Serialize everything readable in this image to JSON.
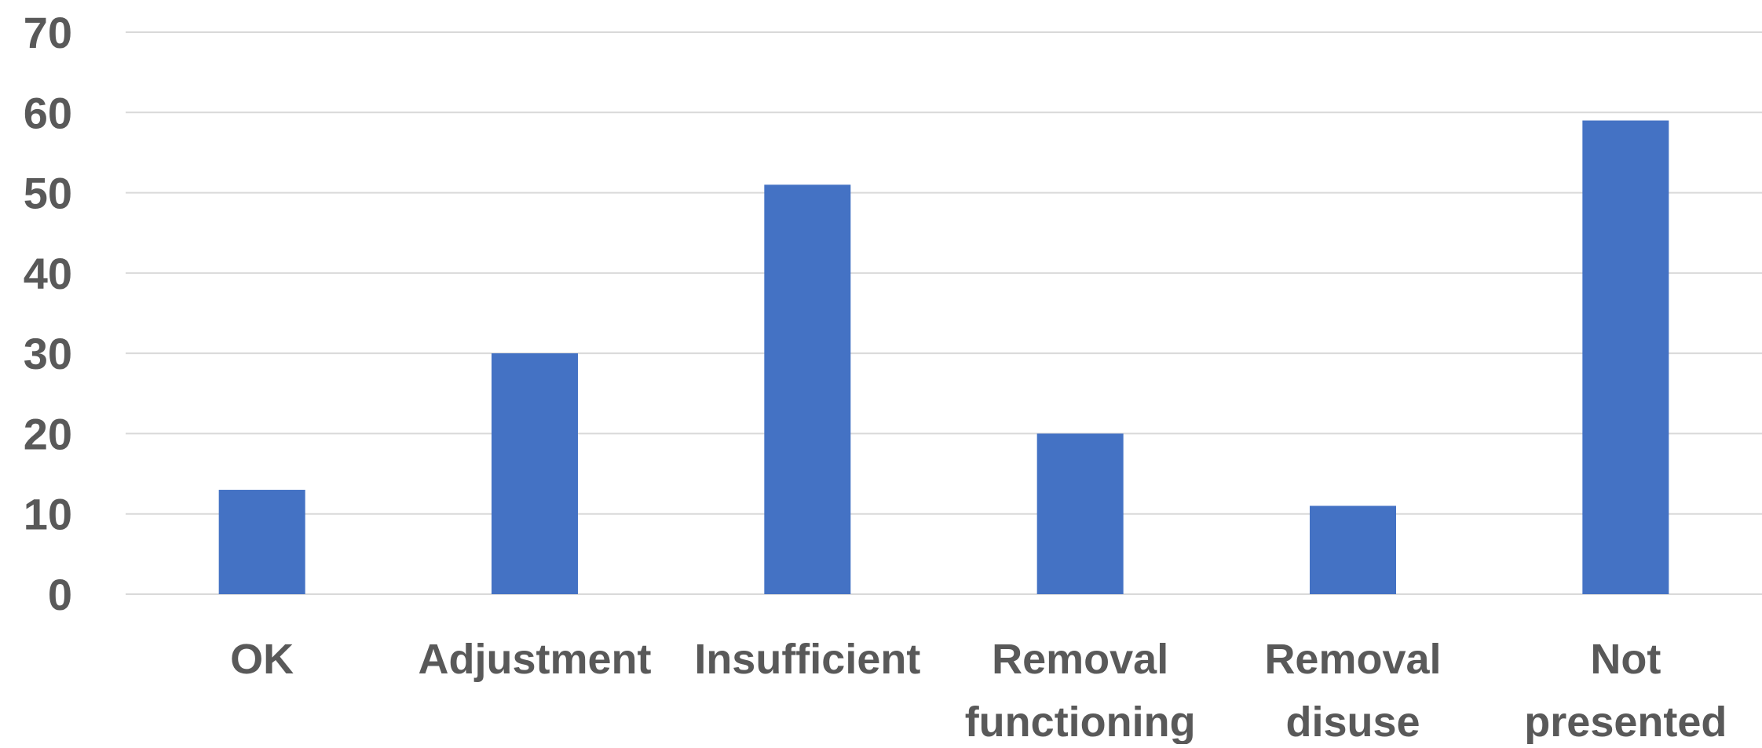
{
  "chart_data": {
    "type": "bar",
    "categories": [
      [
        "OK"
      ],
      [
        "Adjustment"
      ],
      [
        "Insufficient"
      ],
      [
        "Removal",
        "functioning"
      ],
      [
        "Removal",
        "disuse"
      ],
      [
        "Not",
        "presented"
      ]
    ],
    "values": [
      13,
      30,
      51,
      20,
      11,
      59
    ],
    "ylim": [
      0,
      70
    ],
    "yticks": [
      0,
      10,
      20,
      30,
      40,
      50,
      60,
      70
    ],
    "grid": true,
    "colors": {
      "bar": "#4472c4",
      "grid": "#d9d9d9",
      "text": "#595959"
    }
  }
}
